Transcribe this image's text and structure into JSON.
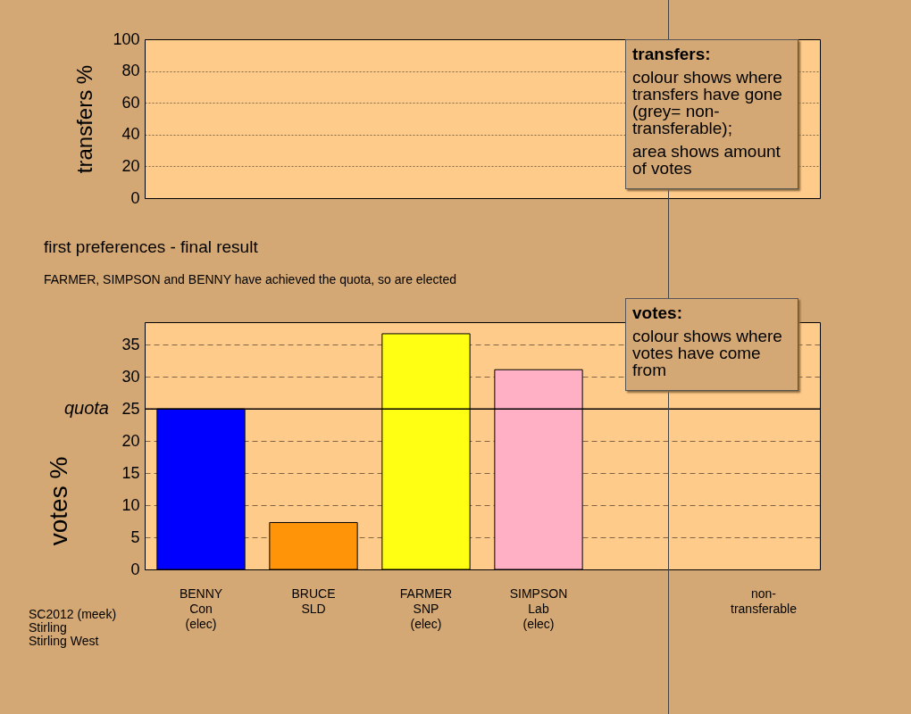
{
  "chart_data": [
    {
      "type": "bar",
      "categories": [
        null,
        null,
        null,
        null,
        null,
        null
      ],
      "values": [
        null,
        null,
        null,
        null,
        null,
        null
      ],
      "ylabel": "transfers %",
      "ylim": [
        0,
        100
      ],
      "yticks": [
        0,
        20,
        40,
        60,
        80,
        100
      ],
      "grid": "y",
      "tick_labels": "y",
      "annotations": [
        "transfers:",
        "colour shows where transfers have gone (grey= non-transferable);",
        "area shows amount of votes"
      ]
    },
    {
      "type": "bar",
      "title": "first preferences - final result",
      "subtitle": "FARMER, SIMPSON and BENNY have achieved the quota, so are elected",
      "ylabel": "votes %",
      "categories": [
        "BENNY\nCon\n(elec)",
        "BRUCE\nSLD",
        "FARMER\nSNP\n(elec)",
        "SIMPSON\nLab\n(elec)",
        null,
        "non-\ntransferable"
      ],
      "values": [
        25.0,
        7.3,
        36.7,
        31.1,
        null,
        null
      ],
      "colors": [
        "#0000ff",
        "#ff9408",
        "#ffff14",
        "#ffb0c4",
        null,
        null
      ],
      "ylim": [
        0,
        38.5
      ],
      "yticks": [
        0,
        5,
        10,
        15,
        20,
        25,
        30,
        35
      ],
      "grid": "y",
      "ref_lines": [
        {
          "axis": "y",
          "value": 25,
          "label": "quota",
          "color": "#000000"
        }
      ],
      "annotations": [
        "votes:",
        "colour shows where votes have come from",
        "SC2012 (meek)\nStirling\nStirling West"
      ]
    }
  ]
}
